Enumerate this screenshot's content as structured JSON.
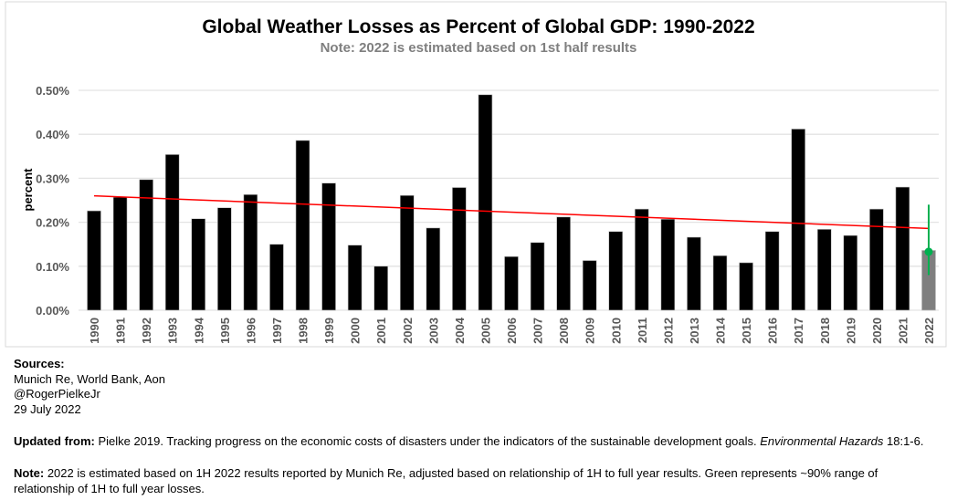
{
  "chart_data": {
    "type": "bar",
    "title": "Global Weather Losses as Percent of Global GDP: 1990-2022",
    "subtitle": "Note: 2022 is estimated based on 1st half results",
    "xlabel": "",
    "ylabel": "percent",
    "ylim": [
      0,
      0.5
    ],
    "yticks": [
      "0.00%",
      "0.10%",
      "0.20%",
      "0.30%",
      "0.40%",
      "0.50%"
    ],
    "grid": true,
    "categories": [
      "1990",
      "1991",
      "1992",
      "1993",
      "1994",
      "1995",
      "1996",
      "1997",
      "1998",
      "1999",
      "2000",
      "2001",
      "2002",
      "2003",
      "2004",
      "2005",
      "2006",
      "2007",
      "2008",
      "2009",
      "2010",
      "2011",
      "2012",
      "2013",
      "2014",
      "2015",
      "2016",
      "2017",
      "2018",
      "2019",
      "2020",
      "2021",
      "2022"
    ],
    "values": [
      0.226,
      0.257,
      0.297,
      0.354,
      0.208,
      0.233,
      0.263,
      0.15,
      0.386,
      0.289,
      0.148,
      0.1,
      0.261,
      0.187,
      0.279,
      0.49,
      0.122,
      0.154,
      0.212,
      0.113,
      0.179,
      0.23,
      0.207,
      0.166,
      0.124,
      0.108,
      0.179,
      0.412,
      0.184,
      0.17,
      0.23,
      0.28,
      0.136
    ],
    "estimated_category": "2022",
    "estimate_point": 0.133,
    "estimate_range": [
      0.08,
      0.24
    ],
    "trendline": {
      "start": 0.26,
      "end": 0.186
    },
    "colors": {
      "bar": "#000000",
      "estimated_bar": "#7f7f7f",
      "trend": "#ff0000",
      "range": "#00b050",
      "grid": "#e3e3e3"
    }
  },
  "footer": {
    "sources_label": "Sources:",
    "sources_line1": "Munich Re,  World Bank,  Aon",
    "sources_line2": "@RogerPielkeJr",
    "sources_line3": "29 July 2022",
    "updated_label": "Updated from:",
    "updated_text": " Pielke 2019. Tracking progress on the economic costs of disasters under the indicators of the sustainable development goals. ",
    "updated_journal": "Environmental Hazards",
    "updated_tail": " 18:1-6.",
    "note_label": "Note:",
    "note_text": " 2022 is estimated based on 1H 2022 results reported by Munich Re, adjusted based on relationship of 1H to full year results. Green represents ~90% range of relationship of 1H to full year losses."
  }
}
